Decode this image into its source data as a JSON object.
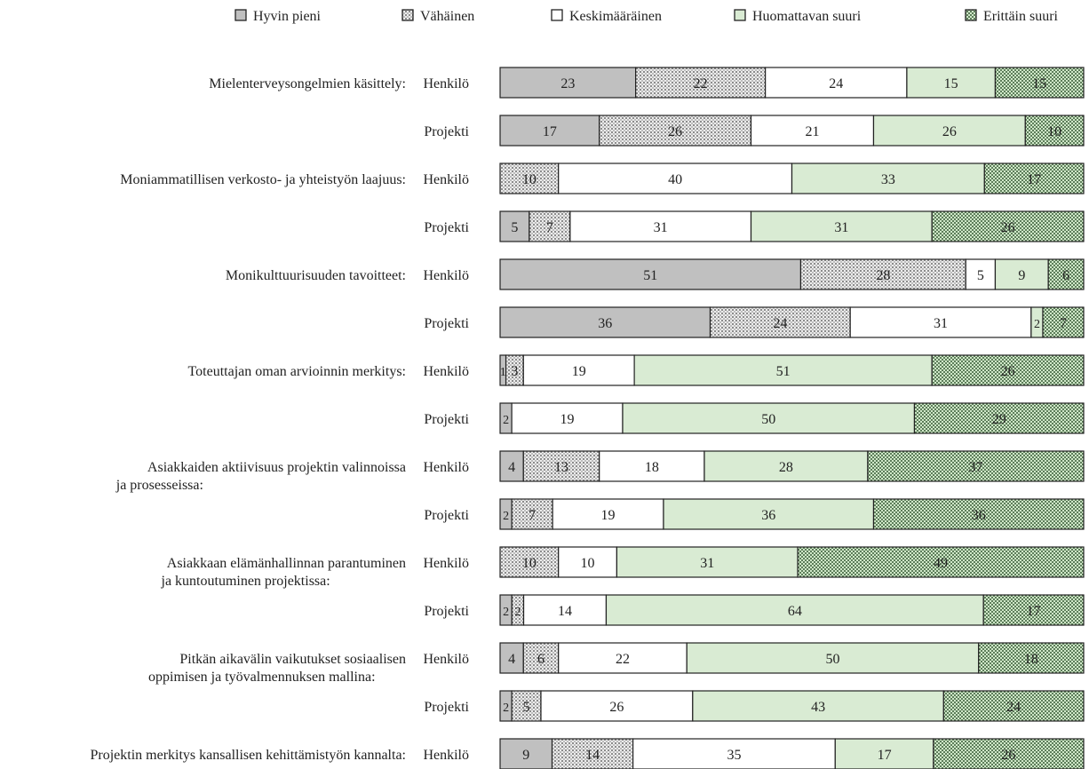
{
  "chart_data": {
    "type": "bar",
    "orientation": "horizontal",
    "stacked": true,
    "xlim": [
      0,
      100
    ],
    "legend_position": "top",
    "grid": false,
    "legend": [
      {
        "name": "Hyvin pieni",
        "color": "#c0c0c0",
        "pattern": "solid"
      },
      {
        "name": "Vähäinen",
        "color": "#d8d8d8",
        "pattern": "dots"
      },
      {
        "name": "Keskimääräinen",
        "color": "#ffffff",
        "pattern": "solid"
      },
      {
        "name": "Huomattavan suuri",
        "color": "#d9ebd3",
        "pattern": "solid"
      },
      {
        "name": "Erittäin suuri",
        "color": "#c9e5c2",
        "pattern": "checker"
      }
    ],
    "groups": [
      {
        "label": [
          "Mielenterveysongelmien käsittely:"
        ],
        "rows": [
          {
            "label": "Henkilö",
            "values": [
              23,
              22,
              24,
              15,
              15
            ]
          },
          {
            "label": "Projekti",
            "values": [
              17,
              26,
              21,
              26,
              10
            ]
          }
        ]
      },
      {
        "label": [
          "Moniammatillisen verkosto- ja yhteistyön laajuus:"
        ],
        "rows": [
          {
            "label": "Henkilö",
            "values": [
              0,
              10,
              40,
              33,
              17
            ]
          },
          {
            "label": "Projekti",
            "values": [
              5,
              7,
              31,
              31,
              26
            ]
          }
        ]
      },
      {
        "label": [
          "Monikulttuurisuuden tavoitteet:"
        ],
        "rows": [
          {
            "label": "Henkilö",
            "values": [
              51,
              28,
              5,
              9,
              6
            ]
          },
          {
            "label": "Projekti",
            "values": [
              36,
              24,
              31,
              2,
              7
            ]
          }
        ]
      },
      {
        "label": [
          "Toteuttajan oman arvioinnin merkitys:"
        ],
        "rows": [
          {
            "label": "Henkilö",
            "values": [
              1,
              3,
              19,
              51,
              26
            ]
          },
          {
            "label": "Projekti",
            "values": [
              2,
              0,
              19,
              50,
              29
            ]
          }
        ]
      },
      {
        "label": [
          "Asiakkaiden aktiivisuus projektin valinnoissa",
          "ja prosesseissa:"
        ],
        "rows": [
          {
            "label": "Henkilö",
            "values": [
              4,
              13,
              18,
              28,
              37
            ]
          },
          {
            "label": "Projekti",
            "values": [
              2,
              7,
              19,
              36,
              36
            ]
          }
        ]
      },
      {
        "label": [
          "Asiakkaan elämänhallinnan parantuminen",
          "ja kuntoutuminen projektissa:"
        ],
        "rows": [
          {
            "label": "Henkilö",
            "values": [
              0,
              10,
              10,
              31,
              49
            ]
          },
          {
            "label": "Projekti",
            "values": [
              2,
              2,
              14,
              64,
              17
            ]
          }
        ]
      },
      {
        "label": [
          "Pitkän aikavälin vaikutukset sosiaalisen",
          "oppimisen ja työvalmennuksen mallina:"
        ],
        "rows": [
          {
            "label": "Henkilö",
            "values": [
              4,
              6,
              22,
              50,
              18
            ]
          },
          {
            "label": "Projekti",
            "values": [
              2,
              5,
              26,
              43,
              24
            ]
          }
        ]
      },
      {
        "label": [
          "Projektin merkitys kansallisen kehittämistyön kannalta:"
        ],
        "rows": [
          {
            "label": "Henkilö",
            "values": [
              9,
              14,
              35,
              17,
              26
            ]
          }
        ]
      }
    ]
  }
}
